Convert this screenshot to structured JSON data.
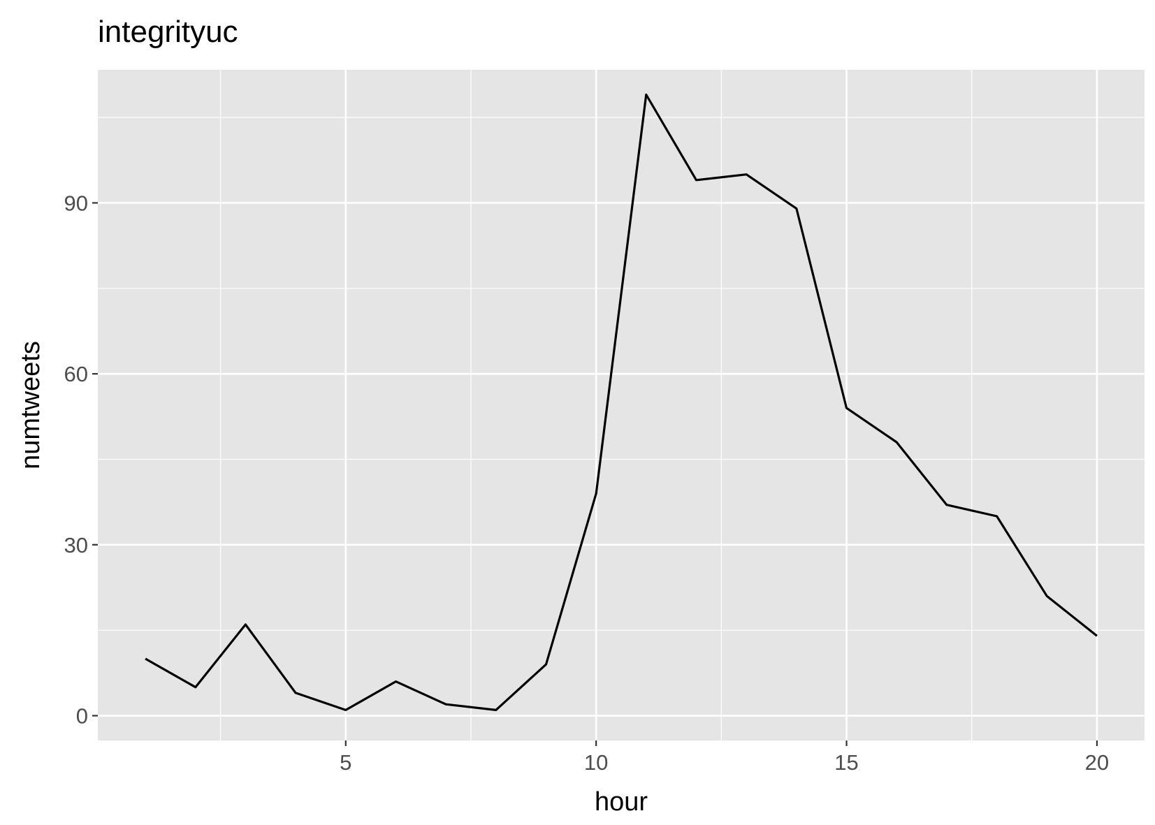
{
  "chart_data": {
    "type": "line",
    "title": "integrityuc",
    "xlabel": "hour",
    "ylabel": "numtweets",
    "xlim": [
      0.05,
      20.95
    ],
    "ylim": [
      -4.35,
      113.35
    ],
    "x_ticks": [
      5,
      10,
      15,
      20
    ],
    "y_ticks": [
      0,
      30,
      60,
      90
    ],
    "x_minor": [
      2.5,
      7.5,
      12.5,
      17.5
    ],
    "y_minor": [
      15,
      45,
      75,
      105
    ],
    "grid": true,
    "panel_background": "#e5e5e5",
    "grid_color": "#ffffff",
    "line_color": "#000000",
    "series": [
      {
        "x": [
          1,
          2,
          3,
          4,
          5,
          6,
          7,
          8,
          9,
          10,
          11,
          12,
          13,
          14,
          15,
          16,
          17,
          18,
          19,
          20
        ],
        "values": [
          10,
          5,
          16,
          4,
          1,
          6,
          2,
          1,
          9,
          39,
          109,
          94,
          95,
          89,
          54,
          48,
          37,
          35,
          21,
          14
        ]
      }
    ]
  }
}
